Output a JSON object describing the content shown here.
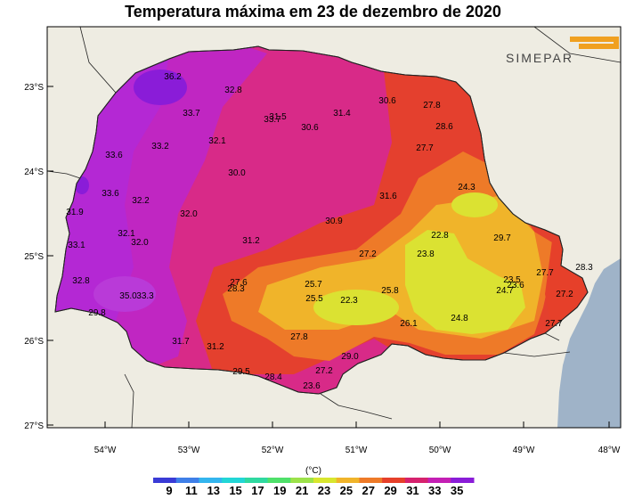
{
  "title": "Temperatura máxima em 23 de dezembro de 2020",
  "logo_text": "SIMEPAR",
  "lat_ticks": [
    "23°S",
    "24°S",
    "25°S",
    "26°S",
    "27°S"
  ],
  "lon_ticks": [
    "54°W",
    "53°W",
    "52°W",
    "51°W",
    "50°W",
    "49°W",
    "48°W"
  ],
  "colorbar": {
    "unit": "(°C)",
    "values": [
      "9",
      "11",
      "13",
      "15",
      "17",
      "19",
      "21",
      "23",
      "25",
      "27",
      "29",
      "31",
      "33",
      "35"
    ],
    "colors": [
      "#3a3bd6",
      "#3f7fe8",
      "#33b5ee",
      "#22d6d6",
      "#2fd9a0",
      "#4fe06a",
      "#9ce24a",
      "#d8e62e",
      "#f0b42a",
      "#ee7a28",
      "#e6402a",
      "#d6226e",
      "#c41fb4",
      "#8a1cd8"
    ]
  },
  "labels": [
    {
      "v": "36.2"
    },
    {
      "v": "32.8"
    },
    {
      "v": "33.7"
    },
    {
      "v": "31.5"
    },
    {
      "v": "33.7"
    },
    {
      "v": "31.4"
    },
    {
      "v": "30.6"
    },
    {
      "v": "30.6"
    },
    {
      "v": "27.8"
    },
    {
      "v": "28.6"
    },
    {
      "v": "33.2"
    },
    {
      "v": "32.1"
    },
    {
      "v": "27.7"
    },
    {
      "v": "33.6"
    },
    {
      "v": "30.0"
    },
    {
      "v": "24.3"
    },
    {
      "v": "33.6"
    },
    {
      "v": "32.2"
    },
    {
      "v": "31.6"
    },
    {
      "v": "31.9"
    },
    {
      "v": "32.0"
    },
    {
      "v": "30.9"
    },
    {
      "v": "22.8"
    },
    {
      "v": "29.7"
    },
    {
      "v": "32.1"
    },
    {
      "v": "32.0"
    },
    {
      "v": "31.2"
    },
    {
      "v": "33.1"
    },
    {
      "v": "27.2"
    },
    {
      "v": "23.8"
    },
    {
      "v": "28.3"
    },
    {
      "v": "32.8"
    },
    {
      "v": "27.6"
    },
    {
      "v": "28.3"
    },
    {
      "v": "25.7"
    },
    {
      "v": "27.7"
    },
    {
      "v": "23.5"
    },
    {
      "v": "24.7"
    },
    {
      "v": "23.6"
    },
    {
      "v": "35.0"
    },
    {
      "v": "33.3"
    },
    {
      "v": "25.8"
    },
    {
      "v": "27.2"
    },
    {
      "v": "25.5"
    },
    {
      "v": "22.3"
    },
    {
      "v": "29.8"
    },
    {
      "v": "24.8"
    },
    {
      "v": "26.1"
    },
    {
      "v": "27.7"
    },
    {
      "v": "31.7"
    },
    {
      "v": "27.8"
    },
    {
      "v": "31.2"
    },
    {
      "v": "29.0"
    },
    {
      "v": "29.5"
    },
    {
      "v": "28.4"
    },
    {
      "v": "27.2"
    },
    {
      "v": "23.6"
    }
  ]
}
